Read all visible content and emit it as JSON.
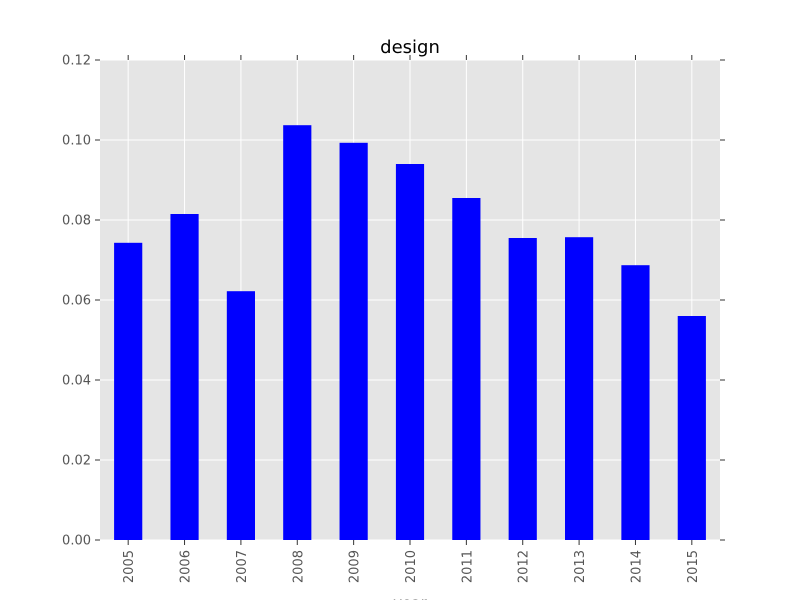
{
  "chart_data": {
    "type": "bar",
    "title": "design",
    "xlabel": "year",
    "ylabel": "",
    "categories": [
      "2005",
      "2006",
      "2007",
      "2008",
      "2009",
      "2010",
      "2011",
      "2012",
      "2013",
      "2014",
      "2015"
    ],
    "values": [
      0.0743,
      0.0815,
      0.0622,
      0.1037,
      0.0993,
      0.094,
      0.0855,
      0.0755,
      0.0757,
      0.0687,
      0.056
    ],
    "ylim": [
      0,
      0.12
    ],
    "yticks": [
      "0.00",
      "0.02",
      "0.04",
      "0.06",
      "0.08",
      "0.10",
      "0.12"
    ],
    "grid": true,
    "bar_color": "#0000ff",
    "plot_background": "#e5e5e5",
    "grid_color": "#ffffff"
  }
}
